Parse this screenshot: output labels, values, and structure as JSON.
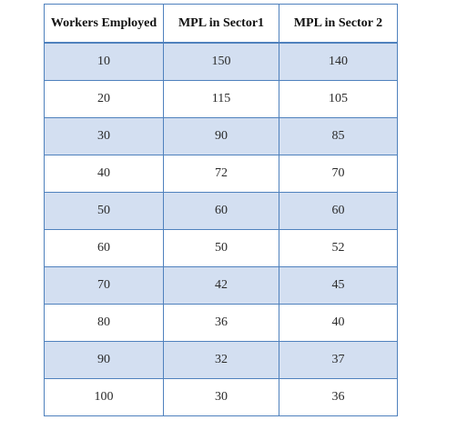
{
  "table": {
    "headers": [
      "Workers Employed",
      "MPL in Sector1",
      "MPL in Sector 2"
    ],
    "rows": [
      [
        "10",
        "150",
        "140"
      ],
      [
        "20",
        "115",
        "105"
      ],
      [
        "30",
        "90",
        "85"
      ],
      [
        "40",
        "72",
        "70"
      ],
      [
        "50",
        "60",
        "60"
      ],
      [
        "60",
        "50",
        "52"
      ],
      [
        "70",
        "42",
        "45"
      ],
      [
        "80",
        "36",
        "40"
      ],
      [
        "90",
        "32",
        "37"
      ],
      [
        "100",
        "30",
        "36"
      ]
    ]
  },
  "colors": {
    "border": "#4f81bd",
    "band": "#d3dff1",
    "plain": "#ffffff"
  }
}
